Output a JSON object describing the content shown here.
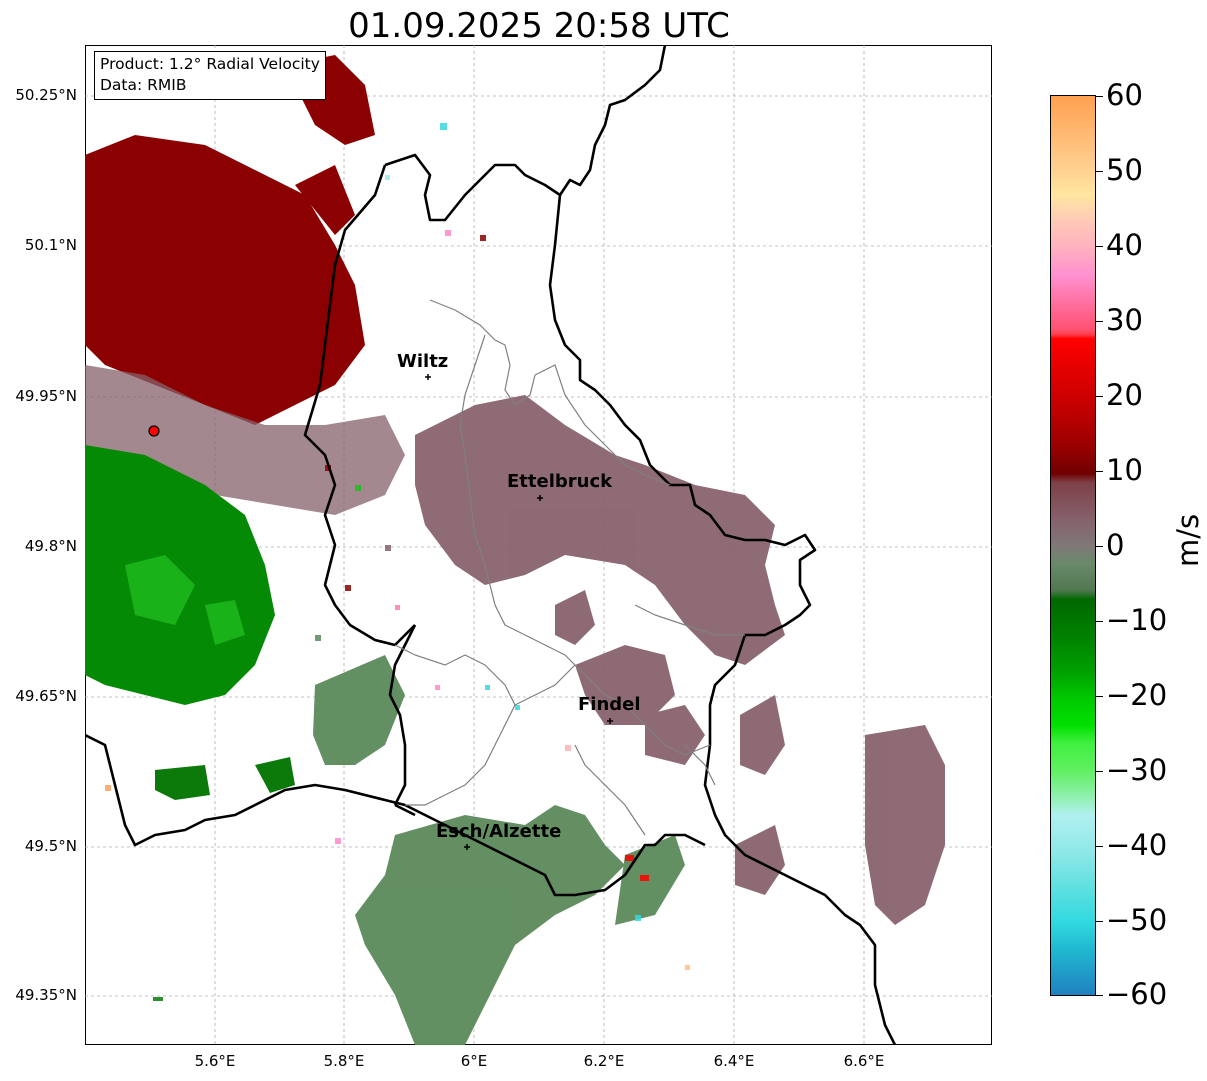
{
  "title": "01.09.2025 20:58 UTC",
  "info": {
    "product": "Product: 1.2° Radial Velocity",
    "source": "Data: RMIB"
  },
  "axes": {
    "lat_ticks": [
      "50.25°N",
      "50.1°N",
      "49.95°N",
      "49.8°N",
      "49.65°N",
      "49.5°N",
      "49.35°N"
    ],
    "lon_ticks": [
      "5.6°E",
      "5.8°E",
      "6°E",
      "6.2°E",
      "6.4°E",
      "6.6°E"
    ],
    "grid": true
  },
  "cities": [
    {
      "name": "Wiltz"
    },
    {
      "name": "Ettelbruck"
    },
    {
      "name": "Findel"
    },
    {
      "name": "Esch/Alzette"
    }
  ],
  "colorbar": {
    "unit": "m/s",
    "range": [
      -60,
      60
    ],
    "tick_labels": [
      "60",
      "50",
      "40",
      "30",
      "20",
      "10",
      "0",
      "−10",
      "−20",
      "−30",
      "−40",
      "−50",
      "−60"
    ]
  },
  "colors": {
    "approaching_green": "#007a00",
    "receding_red": "#8b0000",
    "near_zero_mauve": "#86606a",
    "near_zero_green": "#5a8a5a",
    "radar_site": "#ff0000"
  }
}
